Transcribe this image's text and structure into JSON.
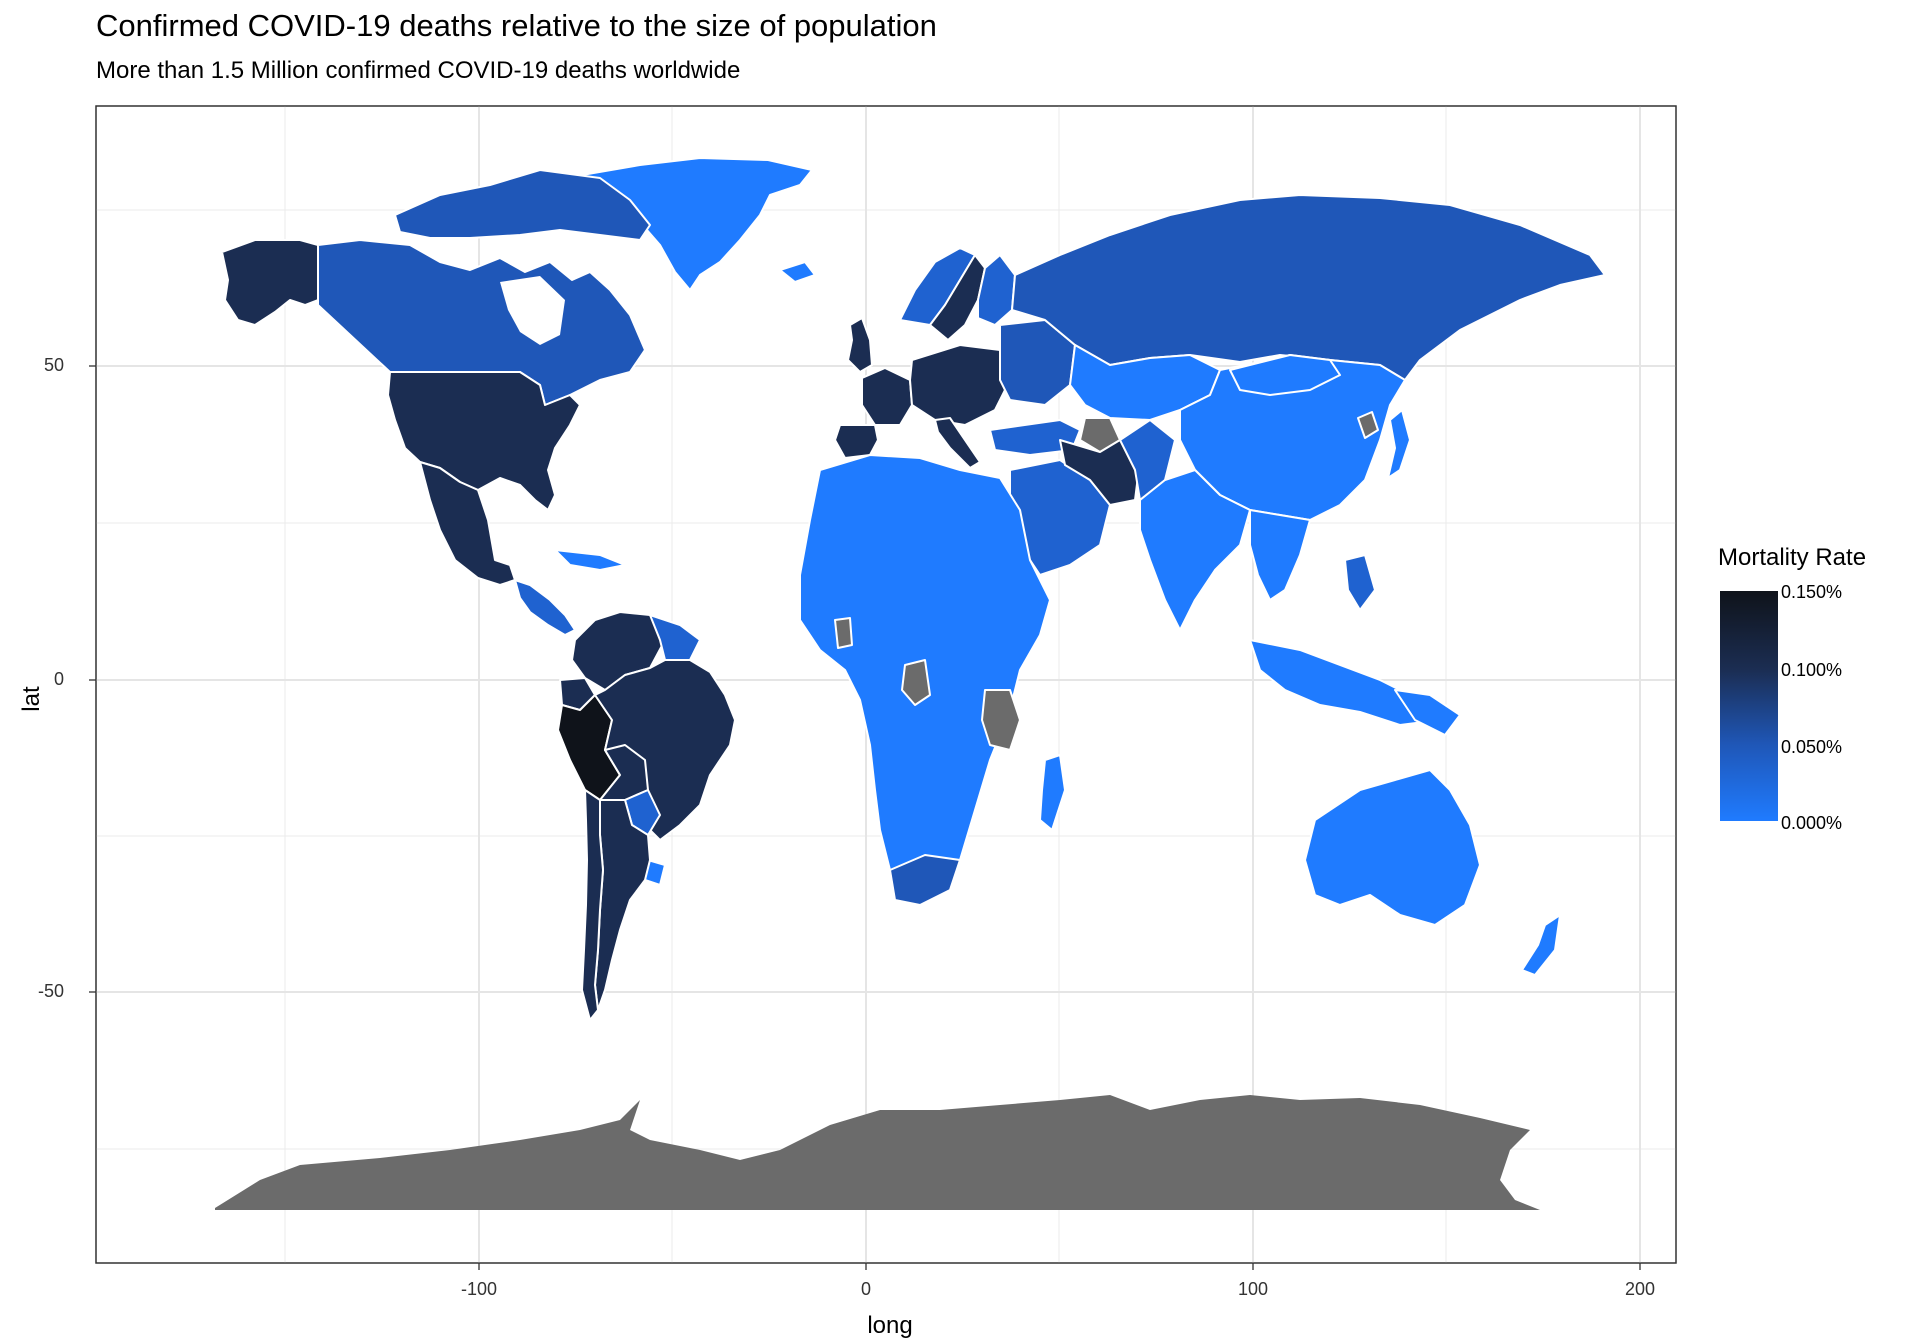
{
  "title": "Confirmed COVID-19 deaths relative to the size of population",
  "subtitle": "More than 1.5 Million confirmed COVID-19 deaths worldwide",
  "chart_data": {
    "type": "choropleth",
    "title": "Confirmed COVID-19 deaths relative to the size of population",
    "subtitle": "More than 1.5 Million confirmed COVID-19 deaths worldwide",
    "xlabel": "long",
    "ylabel": "lat",
    "x_ticks": [
      "-100",
      "0",
      "100",
      "200"
    ],
    "y_ticks": [
      "50",
      "0",
      "-50"
    ],
    "xlim": [
      -190,
      200
    ],
    "ylim": [
      -90,
      87
    ],
    "grid": true,
    "legend": {
      "title": "Mortality Rate",
      "placement": "right",
      "labels": [
        "0.150%",
        "0.100%",
        "0.050%",
        "0.000%"
      ],
      "color_low": "#1f7bff",
      "color_high": "#0f131a"
    },
    "missing_color": "#6b6b6b",
    "border_color": "#ffffff",
    "regions": [
      {
        "name": "Peru",
        "rate": 0.14
      },
      {
        "name": "Spain",
        "rate": 0.1
      },
      {
        "name": "France",
        "rate": 0.085
      },
      {
        "name": "United States",
        "rate": 0.085
      },
      {
        "name": "Mexico",
        "rate": 0.085
      },
      {
        "name": "Brazil",
        "rate": 0.085
      },
      {
        "name": "Argentina",
        "rate": 0.085
      },
      {
        "name": "Chile",
        "rate": 0.08
      },
      {
        "name": "Colombia",
        "rate": 0.075
      },
      {
        "name": "Bolivia",
        "rate": 0.07
      },
      {
        "name": "Ecuador",
        "rate": 0.065
      },
      {
        "name": "United Kingdom",
        "rate": 0.09
      },
      {
        "name": "Sweden",
        "rate": 0.06
      },
      {
        "name": "Iran",
        "rate": 0.06
      },
      {
        "name": "Russia",
        "rate": 0.02
      },
      {
        "name": "Canada",
        "rate": 0.035
      },
      {
        "name": "Alaska",
        "rate": 0.085
      },
      {
        "name": "South Africa",
        "rate": 0.037
      },
      {
        "name": "Turkey",
        "rate": 0.014
      },
      {
        "name": "Paraguay",
        "rate": 0.02
      },
      {
        "name": "Greenland",
        "rate": 0.0
      },
      {
        "name": "China",
        "rate": 0.0
      },
      {
        "name": "India",
        "rate": 0.0
      },
      {
        "name": "Australia",
        "rate": 0.0
      },
      {
        "name": "Africa",
        "rate": 0.001
      },
      {
        "name": "Antarctica",
        "rate": null
      },
      {
        "name": "Turkmenistan",
        "rate": null
      },
      {
        "name": "Tanzania",
        "rate": null
      },
      {
        "name": "Ghana",
        "rate": null
      },
      {
        "name": "North Korea",
        "rate": null
      }
    ]
  }
}
